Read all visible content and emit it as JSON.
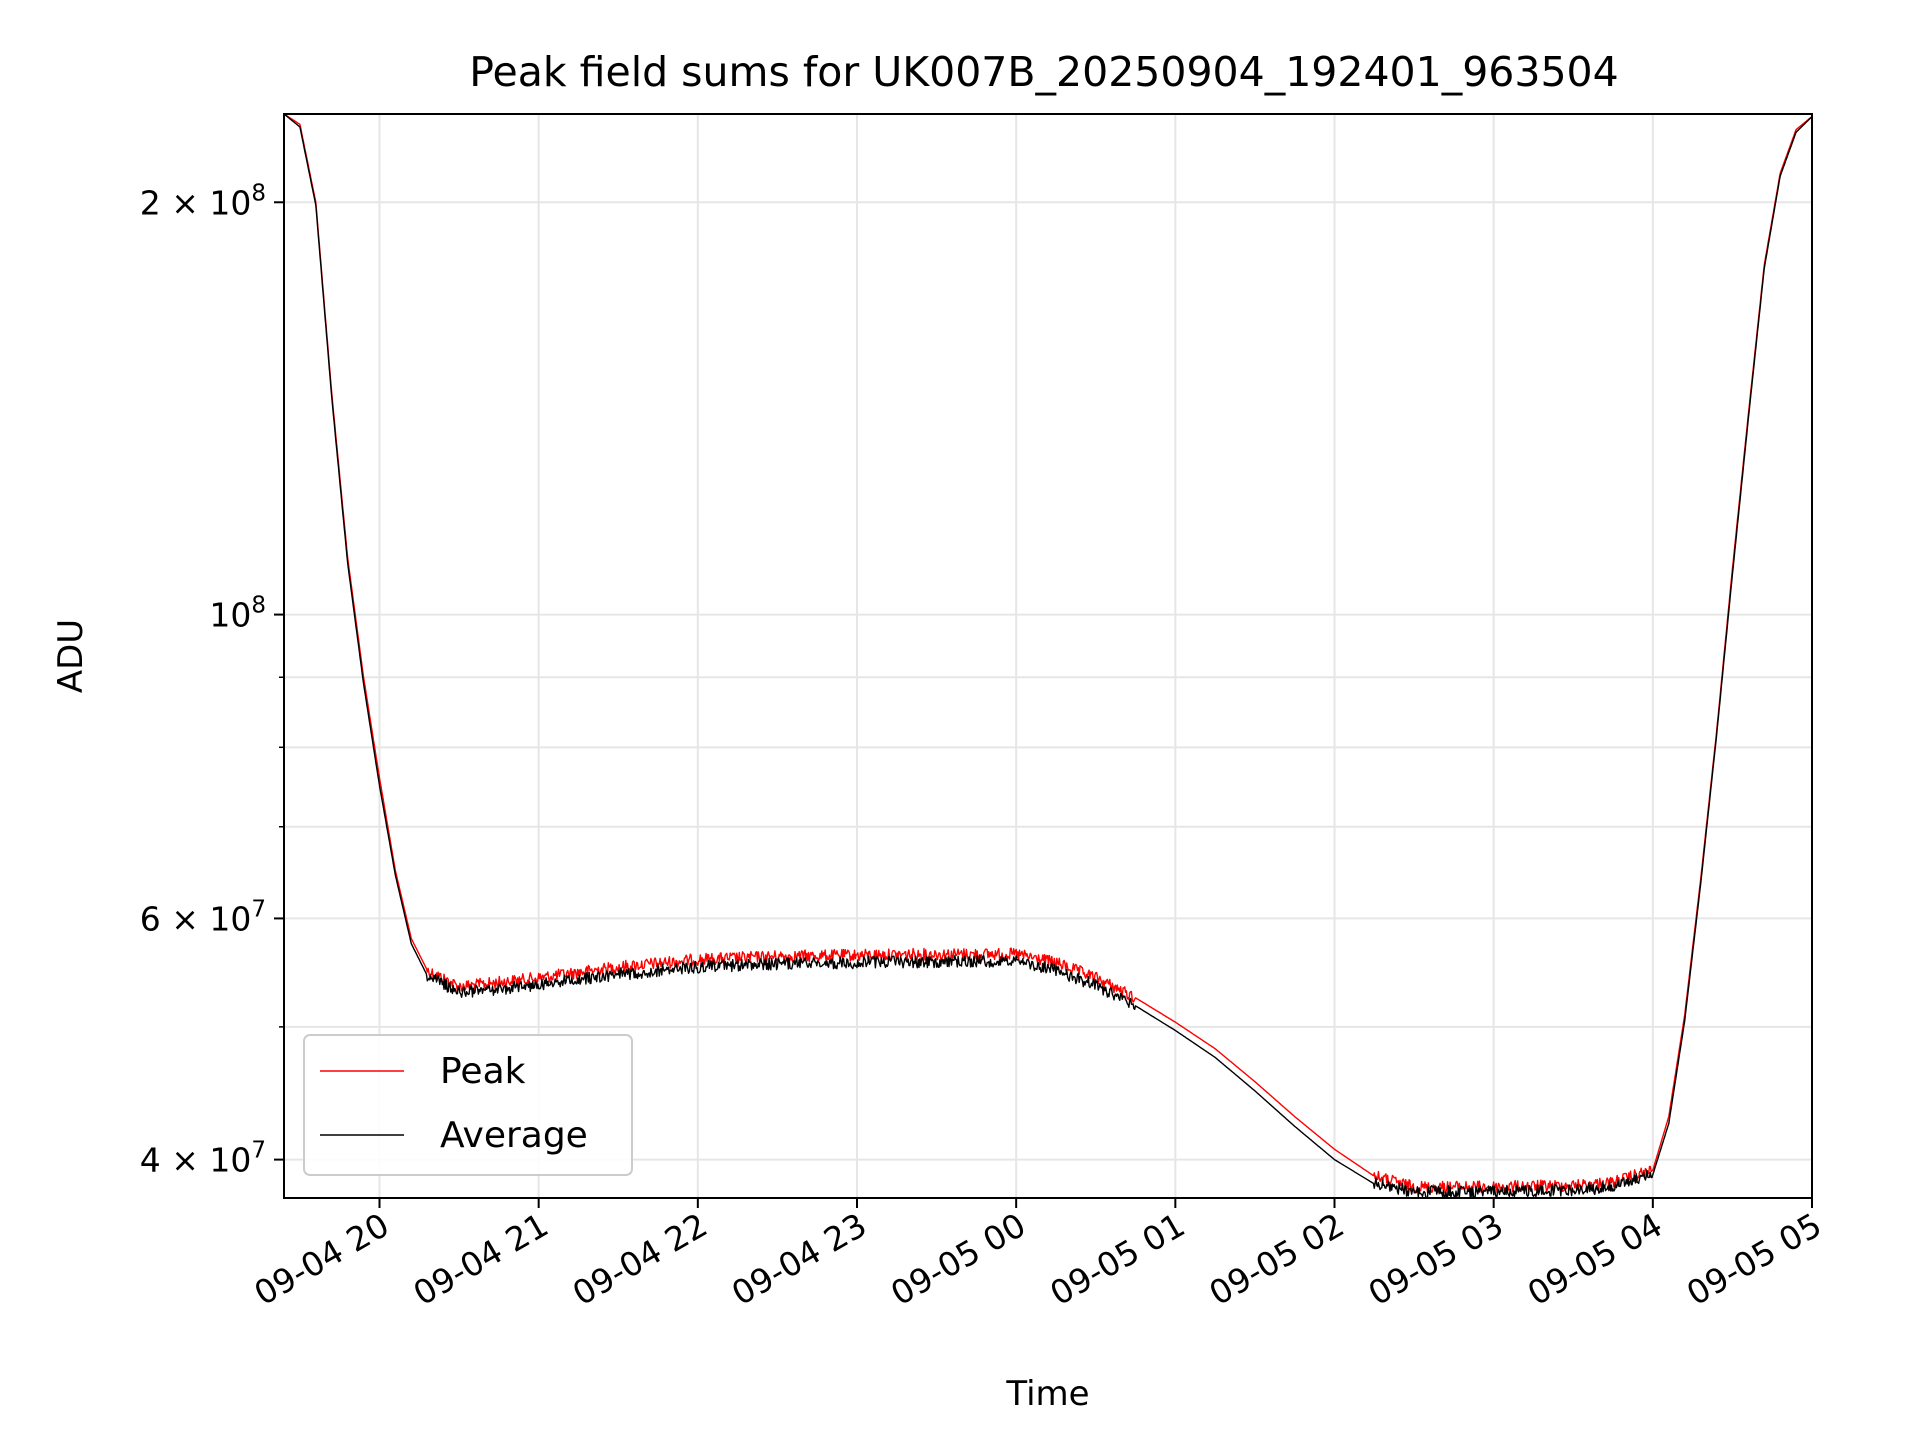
{
  "chart_data": {
    "type": "line",
    "title": "Peak field sums for UK007B_20250904_192401_963504",
    "xlabel": "Time",
    "ylabel": "ADU",
    "y_scale": "log",
    "ylim": [
      37500000,
      232000000
    ],
    "xlim": [
      "09-04 19:24",
      "09-05 05:00"
    ],
    "grid": true,
    "legend_position": "lower-left",
    "x_tick_labels": [
      "09-04 20",
      "09-04 21",
      "09-04 22",
      "09-04 23",
      "09-05 00",
      "09-05 01",
      "09-05 02",
      "09-05 03",
      "09-05 04",
      "09-05 05"
    ],
    "x_ticks": [
      "09-04 20:00",
      "09-04 21:00",
      "09-04 22:00",
      "09-04 23:00",
      "09-05 00:00",
      "09-05 01:00",
      "09-05 02:00",
      "09-05 03:00",
      "09-05 04:00",
      "09-05 05:00"
    ],
    "y_major_ticks": [
      {
        "value": 40000000,
        "mantissa": "4",
        "exponent": "7"
      },
      {
        "value": 60000000,
        "mantissa": "6",
        "exponent": "7"
      },
      {
        "value": 100000000,
        "mantissa": "",
        "exponent": "8"
      },
      {
        "value": 200000000,
        "mantissa": "2",
        "exponent": "8"
      }
    ],
    "y_minor_ticks": [
      50000000,
      70000000,
      80000000,
      90000000,
      300000000
    ],
    "x": [
      "09-04 19:24",
      "09-04 19:30",
      "09-04 19:36",
      "09-04 19:42",
      "09-04 19:48",
      "09-04 19:54",
      "09-04 20:00",
      "09-04 20:06",
      "09-04 20:12",
      "09-04 20:18",
      "09-04 20:30",
      "09-04 20:42",
      "09-04 21:00",
      "09-04 21:30",
      "09-04 22:00",
      "09-04 22:30",
      "09-04 23:00",
      "09-04 23:30",
      "09-05 00:00",
      "09-05 00:15",
      "09-05 00:30",
      "09-05 00:45",
      "09-05 01:00",
      "09-05 01:15",
      "09-05 01:30",
      "09-05 01:45",
      "09-05 02:00",
      "09-05 02:15",
      "09-05 02:30",
      "09-05 03:00",
      "09-05 03:30",
      "09-05 03:45",
      "09-05 04:00",
      "09-05 04:06",
      "09-05 04:12",
      "09-05 04:18",
      "09-05 04:24",
      "09-05 04:30",
      "09-05 04:36",
      "09-05 04:42",
      "09-05 04:48",
      "09-05 04:54",
      "09-05 05:00"
    ],
    "series": [
      {
        "name": "Peak",
        "color": "#ff0000",
        "values": [
          232000000,
          228000000,
          200000000,
          145000000,
          110000000,
          90000000,
          76000000,
          65000000,
          58000000,
          55000000,
          53500000,
          53800000,
          54300000,
          55300000,
          56000000,
          56300000,
          56400000,
          56500000,
          56500000,
          55700000,
          54300000,
          52500000,
          50400000,
          48200000,
          45600000,
          43000000,
          40700000,
          38900000,
          38200000,
          38200000,
          38300000,
          38500000,
          39300000,
          43000000,
          51000000,
          64000000,
          82000000,
          108000000,
          140000000,
          180000000,
          210000000,
          226000000,
          231000000
        ]
      },
      {
        "name": "Average",
        "color": "#000000",
        "values": [
          232000000,
          227000000,
          199000000,
          144000000,
          109000000,
          89000000,
          75000000,
          64500000,
          57500000,
          54500000,
          53000000,
          53200000,
          53700000,
          54600000,
          55300000,
          55600000,
          55700000,
          55800000,
          55800000,
          55000000,
          53600000,
          51800000,
          49700000,
          47500000,
          44900000,
          42300000,
          40000000,
          38400000,
          37900000,
          37900000,
          38000000,
          38200000,
          39000000,
          42500000,
          50500000,
          63500000,
          81500000,
          107000000,
          139000000,
          179000000,
          209000000,
          225000000,
          231000000
        ]
      }
    ]
  }
}
